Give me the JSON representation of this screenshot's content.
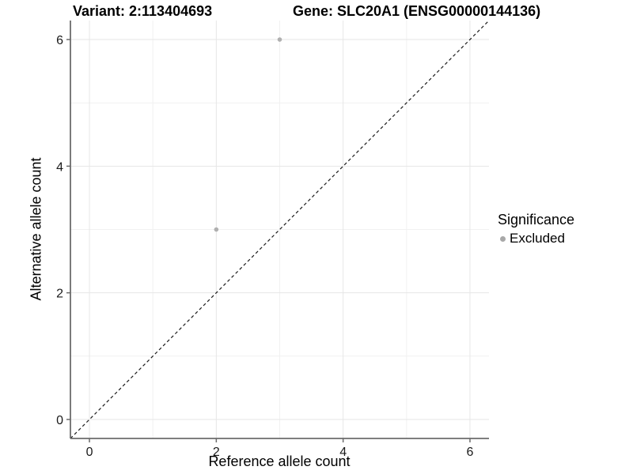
{
  "figure": {
    "title_left": "Variant: 2:113404693",
    "title_right": "Gene: SLC20A1 (ENSG00000144136)"
  },
  "chart_data": {
    "type": "scatter",
    "title": "Variant: 2:113404693 — Gene: SLC20A1 (ENSG00000144136)",
    "xlabel": "Reference allele count",
    "ylabel": "Alternative allele count",
    "xlim": [
      -0.3,
      6.3
    ],
    "ylim": [
      -0.3,
      6.3
    ],
    "x_ticks": [
      0,
      2,
      4,
      6
    ],
    "y_ticks": [
      0,
      2,
      4,
      6
    ],
    "x_minor_ticks": [
      1,
      3,
      5
    ],
    "y_minor_ticks": [
      1,
      3,
      5
    ],
    "grid": true,
    "legend_position": "right",
    "series": [
      {
        "name": "Excluded",
        "marker": "circle",
        "color": "#b0b0b0",
        "points": [
          {
            "x": 2,
            "y": 3
          },
          {
            "x": 3,
            "y": 6
          }
        ]
      }
    ],
    "reference_line": {
      "type": "identity",
      "slope": 1,
      "intercept": 0,
      "style": "dashed",
      "color": "#1a1a1a"
    },
    "legend": {
      "title": "Significance",
      "entries": [
        {
          "label": "Excluded",
          "marker": "circle",
          "color": "#a8a8a8"
        }
      ]
    }
  },
  "colors": {
    "background": "#ffffff",
    "grid_major": "#e6e6e6",
    "grid_minor": "#f1f1f1",
    "axis_line": "#6b6b6b",
    "tick_mark": "#6b6b6b",
    "point": "#b0b0b0",
    "dashed_line": "#1a1a1a",
    "text": "#000000"
  }
}
